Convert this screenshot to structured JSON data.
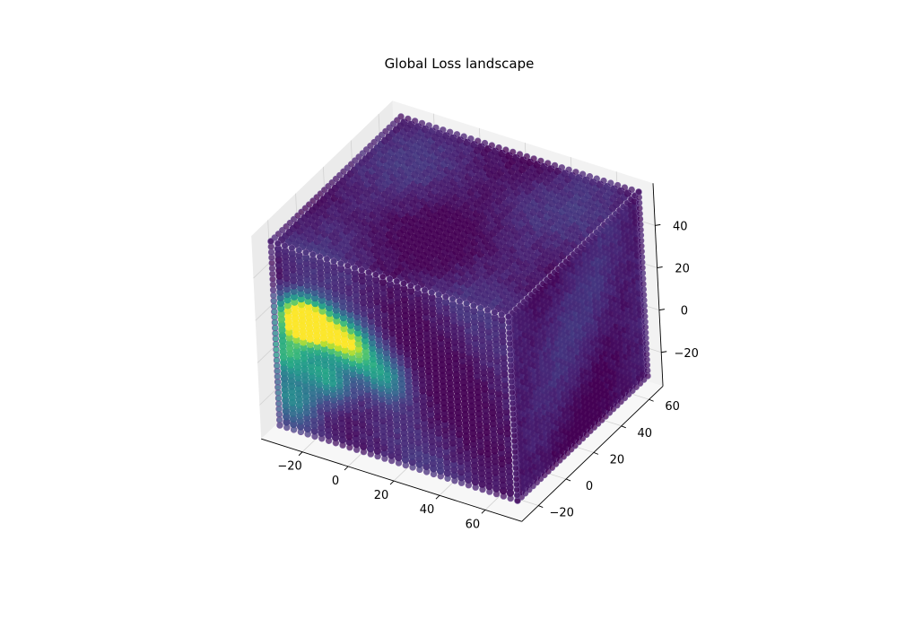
{
  "chart_data": {
    "type": "scatter",
    "dimensions": 3,
    "title": "Global Loss landscape",
    "xlabel": "",
    "ylabel": "",
    "zlabel": "",
    "xlim": [
      -32,
      72
    ],
    "ylim": [
      -28,
      66
    ],
    "zlim": [
      -30,
      57
    ],
    "x_ticks": [
      -20,
      0,
      20,
      40,
      60
    ],
    "y_ticks": [
      -20,
      0,
      20,
      40,
      60
    ],
    "z_ticks": [
      -20,
      0,
      20,
      40
    ],
    "grid": true,
    "colormap": "viridis",
    "pane_color": "#f2f2f2",
    "marker_edge_color": "#7a5a9e",
    "value_range": [
      0,
      1
    ],
    "description_of_values": "dense cube of points; values mostly low (dark purple) with a high-value (yellow-green) region near x=-25..10, z=10..30 on the front face",
    "hotspots": [
      {
        "x": -22,
        "y": -25,
        "z": 22,
        "value": 0.95
      },
      {
        "x": -15,
        "y": -25,
        "z": 25,
        "value": 0.9
      },
      {
        "x": 0,
        "y": -25,
        "z": 20,
        "value": 0.88
      },
      {
        "x": -28,
        "y": -25,
        "z": 5,
        "value": 0.6
      },
      {
        "x": -10,
        "y": -25,
        "z": 0,
        "value": 0.55
      },
      {
        "x": 15,
        "y": -25,
        "z": 10,
        "value": 0.45
      },
      {
        "x": -25,
        "y": -25,
        "z": -15,
        "value": 0.4
      }
    ]
  }
}
